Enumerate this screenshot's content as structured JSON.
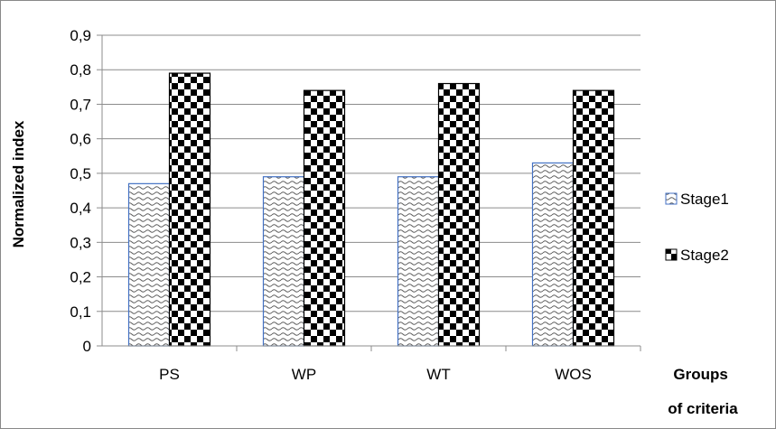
{
  "chart_data": {
    "type": "bar",
    "categories": [
      "PS",
      "WP",
      "WT",
      "WOS"
    ],
    "series": [
      {
        "name": "Stage1",
        "values": [
          0.47,
          0.49,
          0.49,
          0.53
        ],
        "pattern": "wave",
        "outline": "#4472c4"
      },
      {
        "name": "Stage2",
        "values": [
          0.79,
          0.74,
          0.76,
          0.74
        ],
        "pattern": "checker",
        "outline": "#000000"
      }
    ],
    "ylabel": "Normalized index",
    "xlabel_lines": [
      "Groups",
      "of criteria"
    ],
    "ylim": [
      0,
      0.9
    ],
    "yticks": [
      "0",
      "0,1",
      "0,2",
      "0,3",
      "0,4",
      "0,5",
      "0,6",
      "0,7",
      "0,8",
      "0,9"
    ],
    "grid": true,
    "legend_position": "right"
  }
}
